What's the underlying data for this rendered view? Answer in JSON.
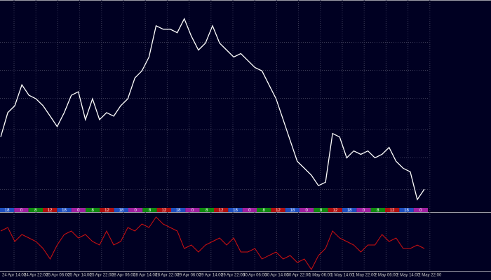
{
  "chart_data": [
    {
      "type": "line",
      "color": "#ffffff",
      "ylim": [
        0,
        300
      ],
      "values": [
        105,
        140,
        150,
        180,
        165,
        160,
        150,
        135,
        120,
        140,
        165,
        170,
        130,
        160,
        130,
        140,
        135,
        150,
        160,
        190,
        200,
        220,
        265,
        260,
        260,
        255,
        275,
        250,
        230,
        240,
        265,
        240,
        230,
        220,
        225,
        215,
        205,
        200,
        180,
        160,
        130,
        100,
        70,
        60,
        50,
        35,
        40,
        110,
        105,
        75,
        85,
        80,
        85,
        75,
        80,
        90,
        70,
        60,
        55,
        15,
        30
      ]
    },
    {
      "type": "line",
      "color": "#d01010",
      "ylim": [
        0,
        80
      ],
      "values": [
        55,
        60,
        40,
        50,
        45,
        40,
        30,
        15,
        35,
        50,
        55,
        45,
        50,
        40,
        35,
        55,
        35,
        40,
        60,
        55,
        65,
        60,
        75,
        65,
        60,
        55,
        30,
        35,
        25,
        35,
        40,
        45,
        35,
        45,
        25,
        25,
        30,
        15,
        20,
        25,
        15,
        20,
        10,
        15,
        0,
        20,
        30,
        55,
        45,
        40,
        35,
        25,
        35,
        35,
        50,
        40,
        45,
        30,
        30,
        35,
        30
      ]
    }
  ],
  "time_axis": {
    "labels": [
      "24 Apr 14:00",
      "24 Apr 22:00",
      "25 Apr 06:00",
      "25 Apr 14:00",
      "25 Apr 22:00",
      "28 Apr 06:00",
      "28 Apr 14:00",
      "28 Apr 22:00",
      "29 Apr 06:00",
      "29 Apr 14:00",
      "29 Apr 22:00",
      "30 Apr 06:00",
      "30 Apr 14:00",
      "30 Apr 22:00",
      "1 May 06:00",
      "1 May 14:00",
      "1 May 22:00",
      "2 May 06:00",
      "2 May 14:00",
      "2 May 22:00"
    ]
  },
  "sessions": {
    "labels": [
      "18",
      "0",
      "8",
      "12",
      "18",
      "0",
      "8",
      "12",
      "18",
      "0",
      "8",
      "12",
      "18",
      "0",
      "8",
      "12",
      "18",
      "0",
      "8",
      "12",
      "18",
      "0",
      "8",
      "12",
      "18",
      "0",
      "8",
      "12",
      "18",
      "0"
    ],
    "colors": [
      "#1f4fbf",
      "#a020a0",
      "#108a10",
      "#b01010",
      "#1f4fbf",
      "#a020a0",
      "#108a10",
      "#b01010",
      "#1f4fbf",
      "#a020a0",
      "#108a10",
      "#b01010",
      "#1f4fbf",
      "#a020a0",
      "#108a10",
      "#b01010",
      "#1f4fbf",
      "#a020a0",
      "#108a10",
      "#b01010",
      "#1f4fbf",
      "#a020a0",
      "#108a10",
      "#b01010",
      "#1f4fbf",
      "#a020a0",
      "#108a10",
      "#b01010",
      "#1f4fbf",
      "#a020a0"
    ]
  }
}
